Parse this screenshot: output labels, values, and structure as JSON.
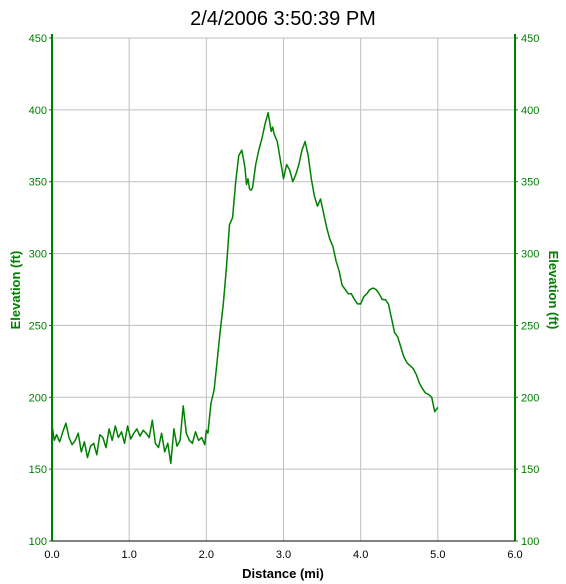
{
  "colors": {
    "background": "#ffffff",
    "grid": "#c0c0c0",
    "axis": "#008000",
    "series": "#008000",
    "title": "#000000",
    "x_tick_text": "#000000",
    "y_tick_text": "#008000"
  },
  "chart_data": {
    "type": "line",
    "title": "2/4/2006 3:50:39 PM",
    "xlabel": "Distance (mi)",
    "ylabel": "Elevation (ft)",
    "ylabel_right": "Elevation (ft)",
    "xlim": [
      0,
      6
    ],
    "ylim": [
      100,
      450
    ],
    "grid": true,
    "x_ticks": [
      "0.0",
      "1.0",
      "2.0",
      "3.0",
      "4.0",
      "5.0",
      "6.0"
    ],
    "y_ticks": [
      "100",
      "150",
      "200",
      "250",
      "300",
      "350",
      "400",
      "450"
    ],
    "series": [
      {
        "x": [
          0.0,
          0.03,
          0.06,
          0.1,
          0.14,
          0.18,
          0.22,
          0.26,
          0.3,
          0.34,
          0.38,
          0.42,
          0.46,
          0.5,
          0.54,
          0.58,
          0.62,
          0.66,
          0.7,
          0.74,
          0.78,
          0.82,
          0.86,
          0.9,
          0.94,
          0.98,
          1.02,
          1.06,
          1.1,
          1.14,
          1.18,
          1.22,
          1.26,
          1.3,
          1.34,
          1.38,
          1.42,
          1.46,
          1.5,
          1.54,
          1.58,
          1.62,
          1.66,
          1.7,
          1.74,
          1.78,
          1.82,
          1.86,
          1.9,
          1.94,
          1.98,
          2.0,
          2.02,
          2.06,
          2.1,
          2.14,
          2.18,
          2.22,
          2.26,
          2.3,
          2.34,
          2.38,
          2.42,
          2.46,
          2.5,
          2.52,
          2.54,
          2.56,
          2.58,
          2.6,
          2.64,
          2.68,
          2.72,
          2.76,
          2.8,
          2.84,
          2.86,
          2.88,
          2.92,
          2.96,
          3.0,
          3.04,
          3.08,
          3.12,
          3.16,
          3.2,
          3.24,
          3.28,
          3.32,
          3.36,
          3.4,
          3.44,
          3.48,
          3.52,
          3.56,
          3.6,
          3.64,
          3.68,
          3.72,
          3.76,
          3.8,
          3.84,
          3.88,
          3.92,
          3.96,
          4.0,
          4.04,
          4.08,
          4.12,
          4.16,
          4.2,
          4.24,
          4.28,
          4.32,
          4.36,
          4.4,
          4.44,
          4.48,
          4.52,
          4.56,
          4.6,
          4.64,
          4.68,
          4.72,
          4.76,
          4.8,
          4.84,
          4.88,
          4.92,
          4.96,
          5.0
        ],
        "y": [
          181,
          170,
          174,
          169,
          176,
          182,
          172,
          167,
          170,
          175,
          162,
          169,
          158,
          166,
          168,
          160,
          174,
          172,
          165,
          178,
          170,
          180,
          172,
          176,
          168,
          180,
          171,
          175,
          178,
          173,
          177,
          175,
          172,
          184,
          168,
          165,
          175,
          162,
          168,
          154,
          178,
          166,
          170,
          194,
          175,
          170,
          168,
          176,
          170,
          172,
          167,
          177,
          175,
          196,
          205,
          225,
          246,
          265,
          290,
          320,
          325,
          350,
          368,
          372,
          360,
          348,
          352,
          345,
          344,
          346,
          362,
          372,
          380,
          390,
          398,
          385,
          388,
          383,
          378,
          365,
          352,
          362,
          358,
          350,
          355,
          362,
          372,
          378,
          368,
          352,
          340,
          333,
          338,
          328,
          318,
          310,
          305,
          295,
          288,
          278,
          275,
          272,
          272,
          268,
          265,
          265,
          270,
          272,
          275,
          276,
          275,
          272,
          268,
          268,
          265,
          255,
          245,
          242,
          235,
          228,
          224,
          222,
          220,
          216,
          210,
          206,
          203,
          202,
          200,
          190,
          193
        ]
      }
    ]
  }
}
